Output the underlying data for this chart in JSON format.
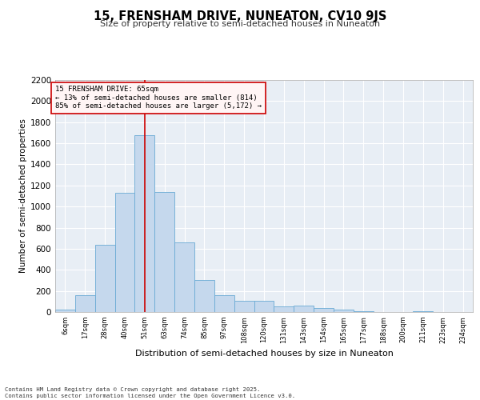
{
  "title_line1": "15, FRENSHAM DRIVE, NUNEATON, CV10 9JS",
  "title_line2": "Size of property relative to semi-detached houses in Nuneaton",
  "xlabel": "Distribution of semi-detached houses by size in Nuneaton",
  "ylabel": "Number of semi-detached properties",
  "bar_color": "#c5d8ed",
  "bar_edge_color": "#6aaad4",
  "background_color": "#e8eef5",
  "grid_color": "#ffffff",
  "categories": [
    "6sqm",
    "17sqm",
    "28sqm",
    "40sqm",
    "51sqm",
    "63sqm",
    "74sqm",
    "85sqm",
    "97sqm",
    "108sqm",
    "120sqm",
    "131sqm",
    "143sqm",
    "154sqm",
    "165sqm",
    "177sqm",
    "188sqm",
    "200sqm",
    "211sqm",
    "223sqm",
    "234sqm"
  ],
  "values": [
    25,
    160,
    640,
    1130,
    1680,
    1140,
    660,
    300,
    160,
    110,
    110,
    55,
    60,
    40,
    25,
    5,
    0,
    0,
    5,
    0,
    0
  ],
  "ylim": [
    0,
    2200
  ],
  "yticks": [
    0,
    200,
    400,
    600,
    800,
    1000,
    1200,
    1400,
    1600,
    1800,
    2000,
    2200
  ],
  "vline_bin_index": 4,
  "annotation_title": "15 FRENSHAM DRIVE: 65sqm",
  "annotation_line2": "← 13% of semi-detached houses are smaller (814)",
  "annotation_line3": "85% of semi-detached houses are larger (5,172) →",
  "vline_color": "#cc0000",
  "annotation_box_edge": "#cc0000",
  "footer_line1": "Contains HM Land Registry data © Crown copyright and database right 2025.",
  "footer_line2": "Contains public sector information licensed under the Open Government Licence v3.0."
}
